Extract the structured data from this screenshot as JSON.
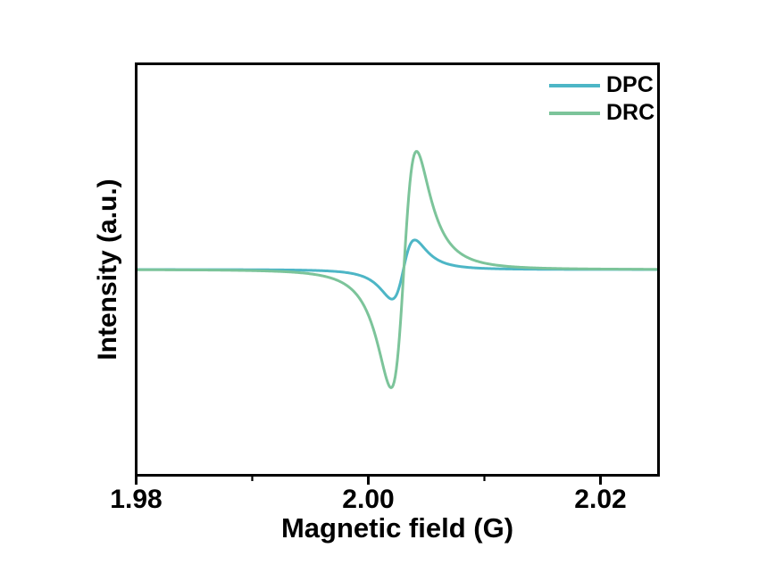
{
  "figure": {
    "background": "#ffffff",
    "frame_color": "#000000",
    "text_color": "#000000"
  },
  "chart_data": {
    "type": "line",
    "title": "",
    "xlabel": "Magnetic field (G)",
    "ylabel": "Intensity (a.u.)",
    "xlim": [
      1.98,
      2.025
    ],
    "ylim": [
      -1.74,
      1.74
    ],
    "grid": false,
    "legend_position": "top-right-inside",
    "x_major_ticks": [
      {
        "value": 1.98,
        "label": "1.98"
      },
      {
        "value": 2.0,
        "label": "2.00"
      },
      {
        "value": 2.02,
        "label": "2.02"
      }
    ],
    "x_minor_ticks": [
      1.99,
      2.01
    ],
    "y_ticks": [],
    "series": [
      {
        "name": "DPC",
        "color": "#4db6c6",
        "line_width": 3,
        "shape": "lorentzian_first_derivative",
        "baseline_au": 0,
        "center_g": 2.00302,
        "halfwidth_g": 0.0017,
        "amplitude_au": 0.25,
        "extrema": {
          "dip_at_g": 2.0022,
          "dip_au": -0.25,
          "peak_at_g": 2.004,
          "peak_au": 0.25
        }
      },
      {
        "name": "DRC",
        "color": "#7cc49a",
        "line_width": 3,
        "shape": "lorentzian_first_derivative",
        "baseline_au": 0,
        "center_g": 2.00306,
        "halfwidth_g": 0.0019,
        "amplitude_au": 1.0,
        "extrema": {
          "dip_at_g": 2.0022,
          "dip_au": -1.0,
          "peak_at_g": 2.0042,
          "peak_au": 1.0
        }
      }
    ]
  }
}
